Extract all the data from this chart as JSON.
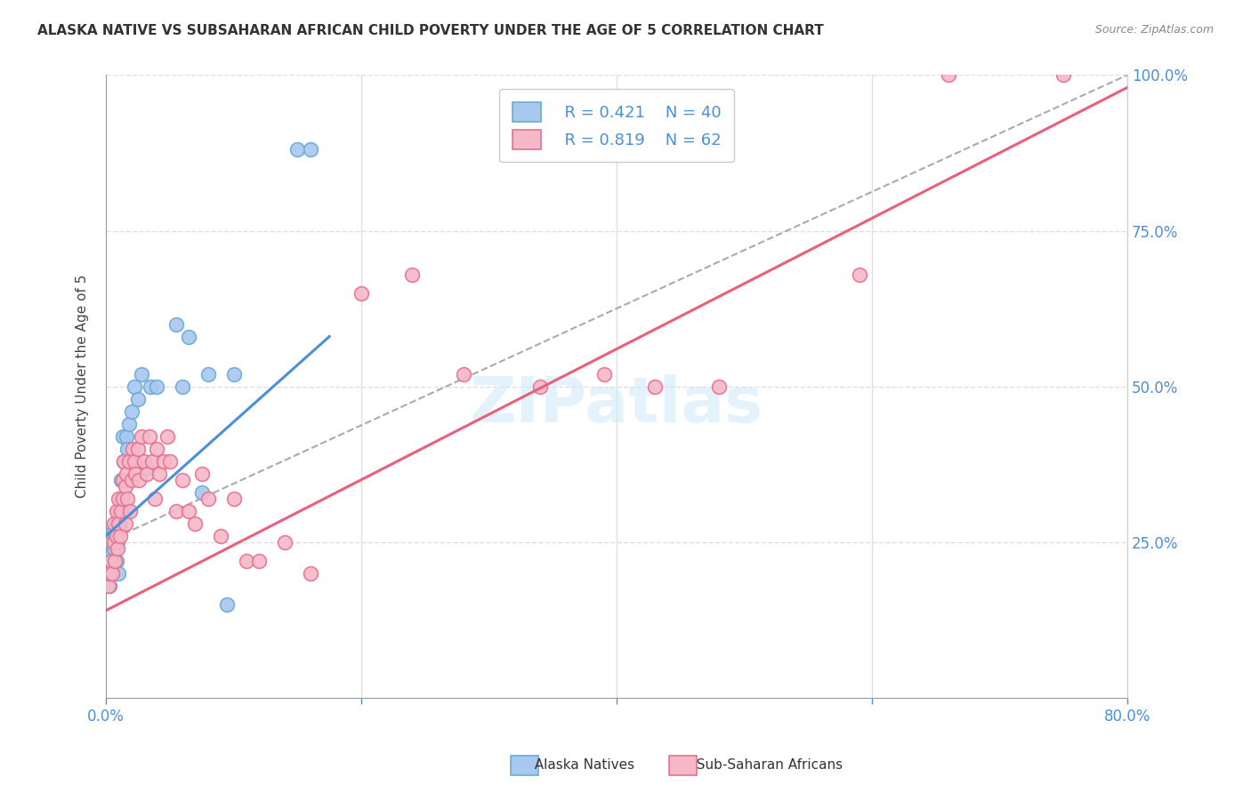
{
  "title": "ALASKA NATIVE VS SUBSAHARAN AFRICAN CHILD POVERTY UNDER THE AGE OF 5 CORRELATION CHART",
  "source": "Source: ZipAtlas.com",
  "ylabel": "Child Poverty Under the Age of 5",
  "xlim": [
    0.0,
    0.8
  ],
  "ylim": [
    0.0,
    1.0
  ],
  "R_blue": 0.421,
  "N_blue": 40,
  "R_pink": 0.819,
  "N_pink": 62,
  "blue_fill": "#a8c8f0",
  "blue_edge": "#6aaad4",
  "pink_fill": "#f5b8c8",
  "pink_edge": "#e87090",
  "blue_line": "#4a90d9",
  "pink_line": "#e8607a",
  "dash_line": "#aaaaaa",
  "watermark": "ZIPatlas",
  "tick_color": "#4a90d9",
  "grid_color": "#e0e0e0",
  "alaska_x": [
    0.002,
    0.003,
    0.004,
    0.004,
    0.005,
    0.006,
    0.006,
    0.007,
    0.008,
    0.008,
    0.009,
    0.01,
    0.01,
    0.011,
    0.012,
    0.012,
    0.013,
    0.014,
    0.015,
    0.015,
    0.016,
    0.017,
    0.018,
    0.019,
    0.02,
    0.022,
    0.025,
    0.028,
    0.032,
    0.035,
    0.04,
    0.055,
    0.06,
    0.065,
    0.075,
    0.08,
    0.095,
    0.1,
    0.15,
    0.16
  ],
  "alaska_y": [
    0.2,
    0.18,
    0.22,
    0.25,
    0.23,
    0.27,
    0.24,
    0.26,
    0.22,
    0.28,
    0.25,
    0.3,
    0.2,
    0.28,
    0.35,
    0.32,
    0.42,
    0.38,
    0.3,
    0.35,
    0.42,
    0.4,
    0.44,
    0.38,
    0.46,
    0.5,
    0.48,
    0.52,
    0.37,
    0.5,
    0.5,
    0.6,
    0.5,
    0.58,
    0.33,
    0.52,
    0.15,
    0.52,
    0.88,
    0.88
  ],
  "subsaharan_x": [
    0.002,
    0.003,
    0.004,
    0.005,
    0.006,
    0.006,
    0.007,
    0.008,
    0.008,
    0.009,
    0.01,
    0.01,
    0.011,
    0.012,
    0.013,
    0.013,
    0.014,
    0.015,
    0.015,
    0.016,
    0.017,
    0.018,
    0.019,
    0.02,
    0.021,
    0.022,
    0.023,
    0.025,
    0.026,
    0.028,
    0.03,
    0.032,
    0.034,
    0.036,
    0.038,
    0.04,
    0.042,
    0.045,
    0.048,
    0.05,
    0.055,
    0.06,
    0.065,
    0.07,
    0.075,
    0.08,
    0.09,
    0.1,
    0.11,
    0.12,
    0.14,
    0.16,
    0.2,
    0.24,
    0.28,
    0.34,
    0.39,
    0.43,
    0.48,
    0.59,
    0.66,
    0.75
  ],
  "subsaharan_y": [
    0.18,
    0.2,
    0.22,
    0.2,
    0.25,
    0.28,
    0.22,
    0.26,
    0.3,
    0.24,
    0.28,
    0.32,
    0.26,
    0.3,
    0.35,
    0.32,
    0.38,
    0.28,
    0.34,
    0.36,
    0.32,
    0.38,
    0.3,
    0.35,
    0.4,
    0.38,
    0.36,
    0.4,
    0.35,
    0.42,
    0.38,
    0.36,
    0.42,
    0.38,
    0.32,
    0.4,
    0.36,
    0.38,
    0.42,
    0.38,
    0.3,
    0.35,
    0.3,
    0.28,
    0.36,
    0.32,
    0.26,
    0.32,
    0.22,
    0.22,
    0.25,
    0.2,
    0.65,
    0.68,
    0.52,
    0.5,
    0.52,
    0.5,
    0.5,
    0.68,
    1.0,
    1.0
  ],
  "blue_trendline": [
    0.0,
    0.175,
    0.26,
    0.58
  ],
  "pink_trendline": [
    0.0,
    0.8,
    0.14,
    0.98
  ],
  "dash_trendline": [
    0.0,
    0.8,
    0.25,
    1.0
  ]
}
